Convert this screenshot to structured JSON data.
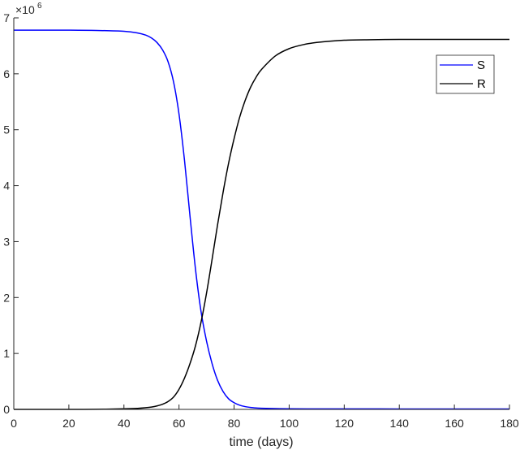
{
  "chart_data": {
    "type": "line",
    "title": "",
    "xlabel": "time (days)",
    "ylabel": "",
    "y_exponent_label": "×10^6",
    "xlim": [
      0,
      180
    ],
    "ylim": [
      0,
      7000000
    ],
    "x_ticks": [
      0,
      20,
      40,
      60,
      80,
      100,
      120,
      140,
      160,
      180
    ],
    "y_ticks": [
      0,
      1000000,
      2000000,
      3000000,
      4000000,
      5000000,
      6000000,
      7000000
    ],
    "x_tick_labels": [
      "0",
      "20",
      "40",
      "60",
      "80",
      "100",
      "120",
      "140",
      "160",
      "180"
    ],
    "y_tick_labels": [
      "0",
      "1",
      "2",
      "3",
      "4",
      "5",
      "6",
      "7"
    ],
    "grid": false,
    "legend_position": "top-right",
    "series": [
      {
        "name": "S",
        "color": "#0000ff",
        "x": [
          0,
          10,
          20,
          30,
          40,
          45,
          48,
          50,
          52,
          54,
          56,
          58,
          60,
          62,
          64,
          66,
          68,
          70,
          72,
          74,
          76,
          78,
          80,
          82,
          84,
          86,
          88,
          90,
          95,
          100,
          110,
          120,
          140,
          160,
          180
        ],
        "y": [
          6780000,
          6780000,
          6780000,
          6775000,
          6760000,
          6730000,
          6690000,
          6640000,
          6560000,
          6430000,
          6220000,
          5860000,
          5280000,
          4450000,
          3450000,
          2500000,
          1750000,
          1220000,
          820000,
          520000,
          320000,
          190000,
          120000,
          75000,
          50000,
          35000,
          26000,
          20000,
          14000,
          11000,
          9000,
          8500,
          8200,
          8100,
          8000
        ]
      },
      {
        "name": "R",
        "color": "#000000",
        "x": [
          0,
          10,
          20,
          30,
          40,
          45,
          48,
          50,
          52,
          54,
          56,
          58,
          60,
          62,
          64,
          66,
          68,
          70,
          72,
          74,
          76,
          78,
          80,
          82,
          84,
          86,
          88,
          90,
          95,
          100,
          105,
          110,
          120,
          130,
          140,
          150,
          160,
          180
        ],
        "y": [
          0,
          0,
          0,
          2000,
          10000,
          18000,
          30000,
          42000,
          62000,
          92000,
          140000,
          220000,
          360000,
          560000,
          820000,
          1140000,
          1560000,
          2080000,
          2680000,
          3300000,
          3880000,
          4400000,
          4840000,
          5220000,
          5520000,
          5760000,
          5940000,
          6080000,
          6320000,
          6450000,
          6520000,
          6560000,
          6600000,
          6610000,
          6615000,
          6615000,
          6615000,
          6615000
        ]
      }
    ]
  }
}
